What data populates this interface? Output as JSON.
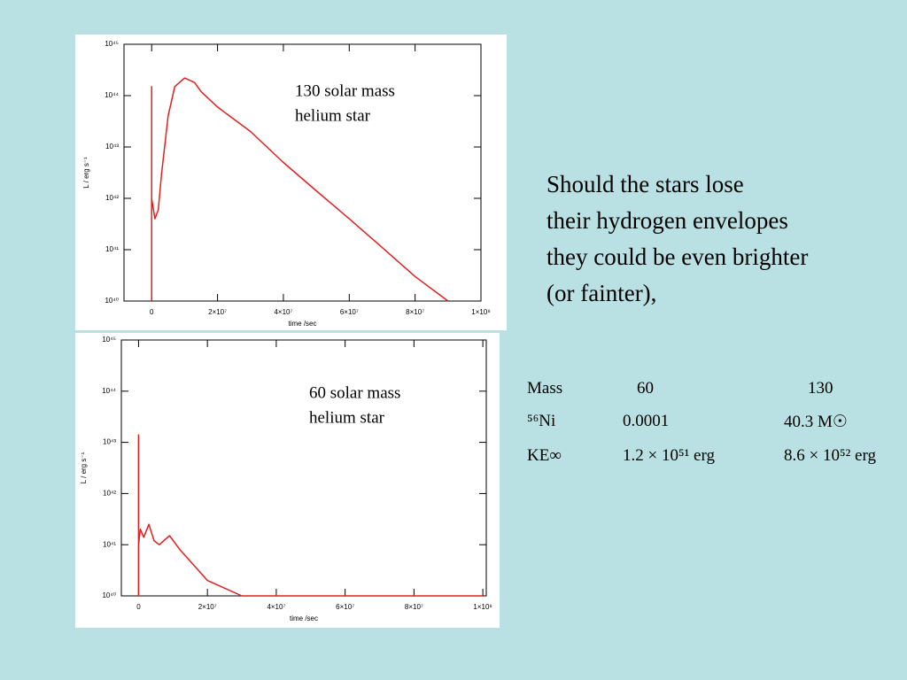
{
  "chart_data": [
    {
      "type": "line",
      "y_label": "L / erg s⁻¹",
      "x_label": "time /sec",
      "annotation": [
        "130 solar mass",
        "helium star"
      ],
      "ylog": true,
      "ylim": [
        1e+40,
        1e+45
      ],
      "yticks": [
        {
          "value": 1e+40,
          "label": "10⁴⁰"
        },
        {
          "value": 1e+41,
          "label": "10⁴¹"
        },
        {
          "value": 1e+42,
          "label": "10⁴²"
        },
        {
          "value": 1e+43,
          "label": "10⁴³"
        },
        {
          "value": 1e+44,
          "label": "10⁴⁴"
        },
        {
          "value": 1e+45,
          "label": "10⁴⁵"
        }
      ],
      "xlim": [
        -8400000,
        100000000
      ],
      "xticks": [
        0,
        {
          "value": 20000000,
          "label": "2×10⁷"
        },
        {
          "value": 40000000,
          "label": "4×10⁷"
        },
        {
          "value": 60000000,
          "label": "6×10⁷"
        },
        {
          "value": 80000000,
          "label": "8×10⁷"
        },
        {
          "value": 100000000,
          "label": "1×10⁸"
        }
      ],
      "series": [
        {
          "color": "#e02020",
          "x": [
            0,
            0,
            0,
            1000000,
            2000000,
            3000000,
            5000000,
            7000000,
            10000000,
            13000000,
            15000000,
            20000000,
            30000000,
            40000000,
            50000000,
            60000000,
            70000000,
            80000000,
            90000000
          ],
          "values": [
            1e+40,
            1.5e+44,
            1e+42,
            4e+41,
            6e+41,
            3e+42,
            4e+43,
            1.5e+44,
            2.2e+44,
            1.8e+44,
            1.2e+44,
            6e+43,
            2e+43,
            5e+42,
            1.4e+42,
            4e+41,
            1.1e+41,
            3e+40,
            1e+40
          ]
        }
      ]
    },
    {
      "type": "line",
      "y_label": "L / erg s⁻¹",
      "x_label": "time /sec",
      "annotation": [
        "60 solar mass",
        "helium star"
      ],
      "ylog": true,
      "ylim": [
        1e+40,
        1e+45
      ],
      "yticks": [
        {
          "value": 1e+40,
          "label": "10⁴⁰"
        },
        {
          "value": 1e+41,
          "label": "10⁴¹"
        },
        {
          "value": 1e+42,
          "label": "10⁴²"
        },
        {
          "value": 1e+43,
          "label": "10⁴³"
        },
        {
          "value": 1e+44,
          "label": "10⁴⁴"
        },
        {
          "value": 1e+45,
          "label": "10⁴⁵"
        }
      ],
      "xlim": [
        -5000000,
        101000000
      ],
      "xticks": [
        0,
        {
          "value": 20000000,
          "label": "2×10⁷"
        },
        {
          "value": 40000000,
          "label": "4×10⁷"
        },
        {
          "value": 60000000,
          "label": "6×10⁷"
        },
        {
          "value": 80000000,
          "label": "8×10⁷"
        },
        {
          "value": 100000000,
          "label": "1×10⁸"
        }
      ],
      "series": [
        {
          "color": "#e02020",
          "x": [
            0,
            0,
            0,
            500000,
            1500000,
            3000000,
            4500000,
            6000000,
            9000000,
            12000000,
            20000000,
            30000000,
            50000000,
            100000000
          ],
          "values": [
            1e+40,
            1.4e+43,
            1e+41,
            2e+41,
            1.4e+41,
            2.5e+41,
            1.2e+41,
            1e+41,
            1.5e+41,
            8e+40,
            2e+40,
            1e+40,
            1e+40,
            1e+40
          ]
        }
      ]
    }
  ],
  "text": [
    "Should the stars lose",
    "their hydrogen envelopes",
    "they could be even brighter",
    "(or fainter),"
  ],
  "table": {
    "rows": [
      [
        "Mass",
        "60",
        "130"
      ],
      [
        "⁵⁶Ni",
        "0.0001",
        "40.3  M☉"
      ],
      [
        "KE∞",
        "1.2 × 10⁵¹ erg",
        "8.6 × 10⁵² erg"
      ]
    ]
  }
}
